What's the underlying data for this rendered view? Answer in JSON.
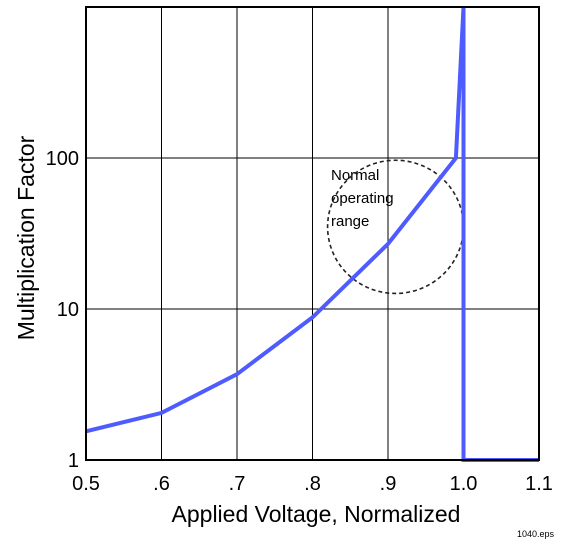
{
  "chart_data": {
    "type": "line",
    "title": "",
    "xlabel": "Applied Voltage, Normalized",
    "ylabel": "Multiplication Factor",
    "x_ticks": [
      {
        "value": 0.5,
        "label": "0.5"
      },
      {
        "value": 0.6,
        "label": ".6"
      },
      {
        "value": 0.7,
        "label": ".7"
      },
      {
        "value": 0.8,
        "label": ".8"
      },
      {
        "value": 0.9,
        "label": ".9"
      },
      {
        "value": 1.0,
        "label": "1.0"
      },
      {
        "value": 1.1,
        "label": "1.1"
      }
    ],
    "y_ticks": [
      {
        "value": 1,
        "label": "1"
      },
      {
        "value": 10,
        "label": "10"
      },
      {
        "value": 100,
        "label": "100"
      }
    ],
    "xlim": [
      0.5,
      1.1
    ],
    "ylim": [
      1,
      1000
    ],
    "y_scale": "log",
    "grid": true,
    "series": [
      {
        "x": [
          0.5,
          0.6,
          0.7,
          0.8,
          0.9,
          0.99,
          1.0,
          1.0,
          1.1
        ],
        "y": [
          1.55,
          2.05,
          3.7,
          8.8,
          27,
          100,
          1000,
          1,
          1
        ],
        "color": "#4d5bff"
      }
    ],
    "annotations": [
      {
        "text_lines": [
          "Normal",
          "operating",
          "range"
        ],
        "shape": "dashed-circle",
        "center": [
          0.91,
          35
        ],
        "radius_x": 0.09
      }
    ],
    "footer_label": "1040.eps"
  }
}
